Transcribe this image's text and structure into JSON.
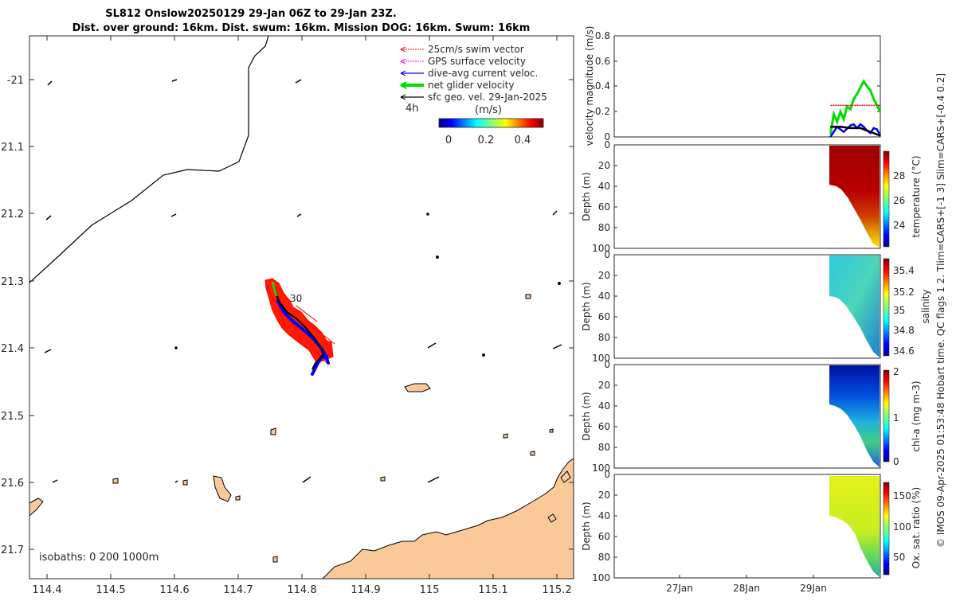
{
  "header": {
    "title_line1": "SL812 Onslow20250129 29-Jan 06Z to 29-Jan 23Z.",
    "title_line2": "Dist. over ground: 16km. Dist. swum: 16km. Mission DOG: 16km. Swum: 16km"
  },
  "side_note": "© IMOS 09-Apr-2025 01:53:48 Hobart time. QC flags 1  2. Tlim=CARS+[-1 3] Slim=CARS+[-0.4 0.2]",
  "map": {
    "lon_ticks": [
      "114.4",
      "114.5",
      "114.6",
      "114.7",
      "114.8",
      "114.9",
      "115",
      "115.1",
      "115.2"
    ],
    "lat_ticks": [
      "-21",
      "21.1",
      "21.2",
      "21.3",
      "21.4",
      "21.5",
      "21.6",
      "21.7"
    ],
    "legend": [
      {
        "label": "25cm/s swim vector",
        "color": "#ff0000"
      },
      {
        "label": "GPS surface velocity",
        "color": "#ff00ff"
      },
      {
        "label": "dive-avg current veloc.",
        "color": "#0000ff"
      },
      {
        "label": "net glider velocity",
        "color": "#00dd00"
      },
      {
        "label": "sfc geo. vel. 29-Jan-2025",
        "color": "#000000"
      }
    ],
    "scale_label": "4h",
    "colorbar_title": "(m/s)",
    "colorbar_ticks": [
      "0",
      "0.2",
      "0.4"
    ],
    "isobaths_label": "isobaths: 0   200  1000m",
    "track_label": "30",
    "colors": {
      "land": "#f9c99a",
      "track": "#ff0000",
      "current": "#0000ff"
    }
  },
  "panels": {
    "velocity": {
      "ylabel": "velocity magnitude (m/s)",
      "yticks": [
        "0",
        "0.2",
        "0.4",
        "0.6",
        "0.8"
      ]
    },
    "depth_label": "Depth (m)",
    "depth_ticks": [
      "0",
      "20",
      "40",
      "60",
      "80",
      "100"
    ],
    "temperature": {
      "label": "temperature (°C)",
      "cbar_ticks": [
        "28",
        "26",
        "24"
      ]
    },
    "salinity": {
      "label": "salinity",
      "cbar_ticks": [
        "35.4",
        "35.2",
        "35",
        "34.8",
        "34.6"
      ]
    },
    "chla": {
      "label": "chl-a (mg m-3)",
      "cbar_ticks": [
        "2",
        "1",
        "0"
      ]
    },
    "oxygen": {
      "label": "Ox. sat. ratio (%)",
      "cbar_ticks": [
        "150",
        "100",
        "50"
      ]
    },
    "date_ticks": [
      "27Jan",
      "28Jan",
      "29Jan"
    ]
  },
  "chart_data": [
    {
      "type": "line",
      "title": "velocity magnitude (m/s)",
      "ylabel": "velocity magnitude (m/s)",
      "ylim": [
        0,
        0.8
      ],
      "x_unit": "days since 26-Jan 00Z",
      "xlim": [
        26.0,
        30.0
      ],
      "series": [
        {
          "name": "net glider velocity",
          "color": "#00dd00",
          "x": [
            29.25,
            29.3,
            29.35,
            29.4,
            29.45,
            29.5,
            29.55,
            29.6,
            29.65,
            29.7,
            29.75,
            29.8,
            29.85,
            29.9,
            29.95,
            30.0
          ],
          "values": [
            0.02,
            0.18,
            0.12,
            0.2,
            0.14,
            0.24,
            0.22,
            0.3,
            0.34,
            0.39,
            0.44,
            0.4,
            0.37,
            0.3,
            0.25,
            0.2
          ]
        },
        {
          "name": "dive-avg current veloc.",
          "color": "#0000ff",
          "x": [
            29.25,
            29.35,
            29.45,
            29.55,
            29.6,
            29.65,
            29.7,
            29.75,
            29.8,
            29.85,
            29.9,
            29.95,
            30.0
          ],
          "values": [
            0.0,
            0.08,
            0.04,
            0.09,
            0.1,
            0.07,
            0.1,
            0.08,
            0.05,
            0.03,
            0.07,
            0.06,
            0.01
          ]
        },
        {
          "name": "sfc geo. vel.",
          "color": "#000000",
          "x": [
            29.25,
            29.4,
            29.55,
            29.7,
            29.8,
            29.9,
            30.0
          ],
          "values": [
            0.08,
            0.08,
            0.07,
            0.07,
            0.05,
            0.03,
            0.01
          ]
        },
        {
          "name": "25cm/s swim vector",
          "color": "#ff0000",
          "x": [
            29.25,
            30.0
          ],
          "values": [
            0.25,
            0.25
          ]
        }
      ]
    },
    {
      "type": "heatmap",
      "title": "temperature",
      "ylabel": "Depth (m)",
      "ylim": [
        100,
        0
      ],
      "colorbar_range": [
        22.5,
        30
      ]
    },
    {
      "type": "heatmap",
      "title": "salinity",
      "ylabel": "Depth (m)",
      "ylim": [
        100,
        0
      ],
      "colorbar_range": [
        34.55,
        35.5
      ]
    },
    {
      "type": "heatmap",
      "title": "chl-a (mg m-3)",
      "ylabel": "Depth (m)",
      "ylim": [
        100,
        0
      ],
      "colorbar_range": [
        0,
        2
      ]
    },
    {
      "type": "heatmap",
      "title": "Ox. sat. ratio (%)",
      "ylabel": "Depth (m)",
      "ylim": [
        100,
        0
      ],
      "colorbar_range": [
        20,
        175
      ]
    }
  ]
}
